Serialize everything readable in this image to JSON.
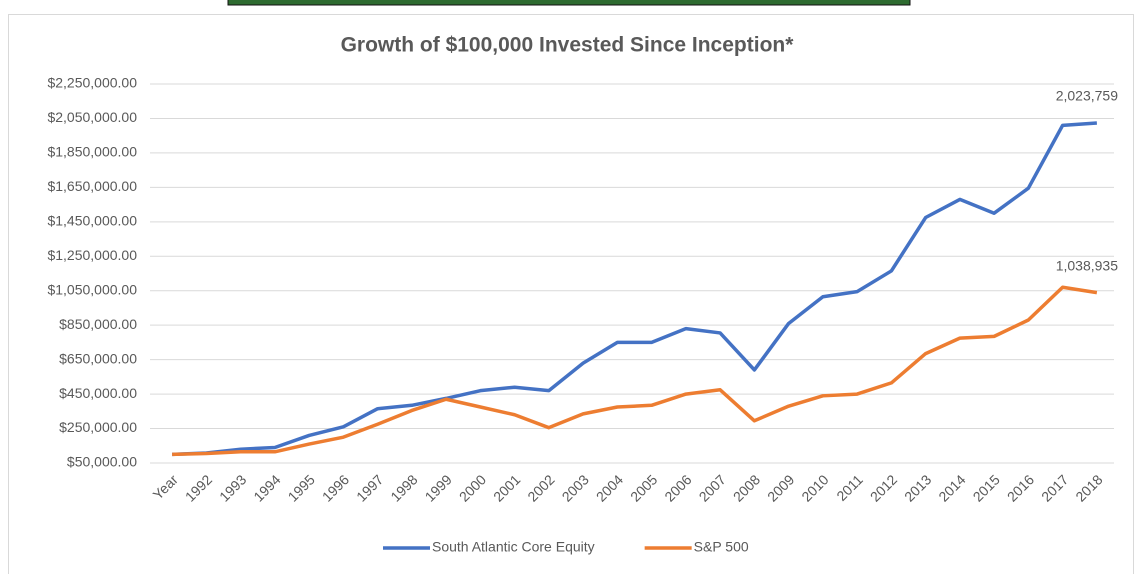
{
  "chart_data": {
    "type": "line",
    "title": "Growth of $100,000 Invested Since Inception*",
    "categories": [
      "Year",
      "1992",
      "1993",
      "1994",
      "1995",
      "1996",
      "1997",
      "1998",
      "1999",
      "2000",
      "2001",
      "2002",
      "2003",
      "2004",
      "2005",
      "2006",
      "2007",
      "2008",
      "2009",
      "2010",
      "2011",
      "2012",
      "2013",
      "2014",
      "2015",
      "2016",
      "2017",
      "2018"
    ],
    "series": [
      {
        "name": "South Atlantic Core Equity",
        "color": "#4472c4",
        "values": [
          100000,
          108000,
          130000,
          140000,
          210000,
          260000,
          365000,
          385000,
          425000,
          470000,
          490000,
          470000,
          630000,
          750000,
          750000,
          830000,
          805000,
          590000,
          860000,
          1015000,
          1045000,
          1165000,
          1475000,
          1580000,
          1500000,
          1645000,
          2010000,
          2023759
        ],
        "value_labels": [
          null,
          null,
          null,
          null,
          null,
          null,
          null,
          null,
          null,
          null,
          null,
          null,
          null,
          null,
          null,
          null,
          null,
          null,
          null,
          null,
          null,
          null,
          null,
          null,
          null,
          null,
          null,
          "2,023,759"
        ]
      },
      {
        "name": "S&P 500",
        "color": "#ed7d31",
        "values": [
          100000,
          105000,
          115000,
          115000,
          160000,
          200000,
          275000,
          355000,
          420000,
          375000,
          330000,
          255000,
          335000,
          375000,
          385000,
          450000,
          475000,
          295000,
          380000,
          440000,
          450000,
          515000,
          685000,
          775000,
          785000,
          880000,
          1070000,
          1038935
        ],
        "value_labels": [
          null,
          null,
          null,
          null,
          null,
          null,
          null,
          null,
          null,
          null,
          null,
          null,
          null,
          null,
          null,
          null,
          null,
          null,
          null,
          null,
          null,
          null,
          null,
          null,
          null,
          null,
          null,
          "1,038,935"
        ]
      }
    ],
    "ylim": [
      50000,
      2250000
    ],
    "yticks": [
      {
        "value": 50000,
        "label": "$50,000.00"
      },
      {
        "value": 250000,
        "label": "$250,000.00"
      },
      {
        "value": 450000,
        "label": "$450,000.00"
      },
      {
        "value": 650000,
        "label": "$650,000.00"
      },
      {
        "value": 850000,
        "label": "$850,000.00"
      },
      {
        "value": 1050000,
        "label": "$1,050,000.00"
      },
      {
        "value": 1250000,
        "label": "$1,250,000.00"
      },
      {
        "value": 1450000,
        "label": "$1,450,000.00"
      },
      {
        "value": 1650000,
        "label": "$1,650,000.00"
      },
      {
        "value": 1850000,
        "label": "$1,850,000.00"
      },
      {
        "value": 2050000,
        "label": "$2,050,000.00"
      },
      {
        "value": 2250000,
        "label": "$2,250,000.00"
      }
    ],
    "grid": true,
    "legend": "bottom"
  }
}
